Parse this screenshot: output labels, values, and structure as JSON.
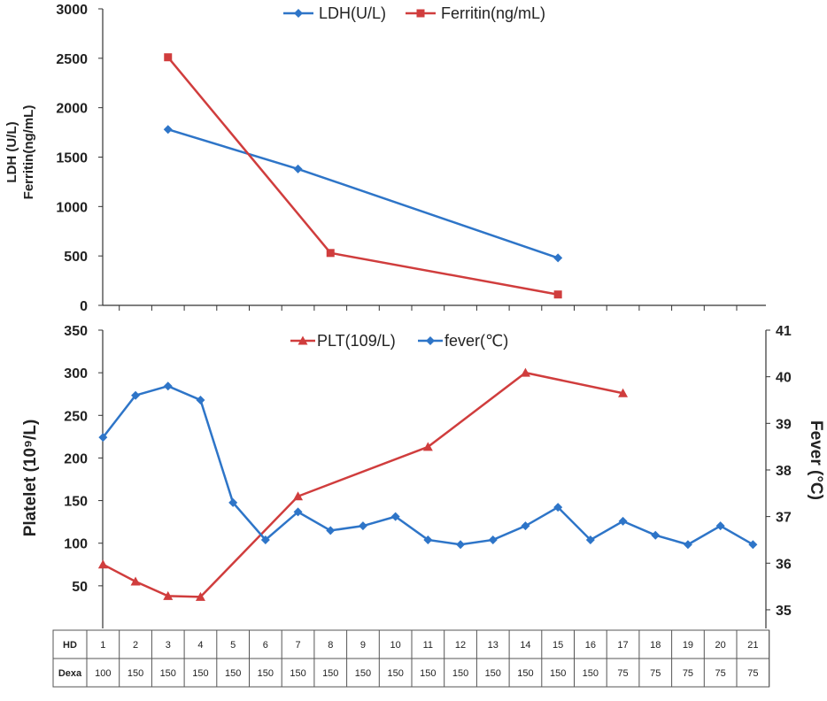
{
  "chart_data": [
    {
      "type": "line",
      "ylabel_line1": "LDH (U/L)",
      "ylabel_line2": "Ferritin(ng/mL)",
      "ylim": [
        0,
        3000
      ],
      "yticks": [
        0,
        500,
        1000,
        1500,
        2000,
        2500,
        3000
      ],
      "legend_position": "top-center",
      "series": [
        {
          "name": "LDH(U/L)",
          "color": "#2e75c8",
          "marker": "diamond",
          "points": [
            [
              3,
              1780
            ],
            [
              7,
              1380
            ],
            [
              15,
              480
            ]
          ]
        },
        {
          "name": "Ferritin(ng/mL)",
          "color": "#d03d3d",
          "marker": "square",
          "points": [
            [
              3,
              2510
            ],
            [
              8,
              530
            ],
            [
              15,
              110
            ]
          ]
        }
      ]
    },
    {
      "type": "line",
      "ylabel_left": "Platelet (10⁹/L)",
      "ylabel_right": "Fever (°C)",
      "ylim_left": [
        0,
        350
      ],
      "yticks_left": [
        50,
        100,
        150,
        200,
        250,
        300,
        350
      ],
      "ylim_right": [
        34.6,
        41
      ],
      "yticks_right": [
        35,
        36,
        37,
        38,
        39,
        40,
        41
      ],
      "legend_position": "top-center",
      "series": [
        {
          "name": "PLT(109/L)",
          "axis": "left",
          "color": "#d03d3d",
          "marker": "triangle",
          "points": [
            [
              1,
              75
            ],
            [
              2,
              55
            ],
            [
              3,
              38
            ],
            [
              4,
              37
            ],
            [
              7,
              155
            ],
            [
              11,
              213
            ],
            [
              14,
              300
            ],
            [
              17,
              276
            ]
          ]
        },
        {
          "name": "fever(℃)",
          "axis": "right",
          "color": "#2e75c8",
          "marker": "diamond",
          "points": [
            [
              1,
              38.7
            ],
            [
              2,
              39.6
            ],
            [
              3,
              39.8
            ],
            [
              4,
              39.5
            ],
            [
              5,
              37.3
            ],
            [
              6,
              36.5
            ],
            [
              7,
              37.1
            ],
            [
              8,
              36.7
            ],
            [
              9,
              36.8
            ],
            [
              10,
              37.0
            ],
            [
              11,
              36.5
            ],
            [
              12,
              36.4
            ],
            [
              13,
              36.5
            ],
            [
              14,
              36.8
            ],
            [
              15,
              37.2
            ],
            [
              16,
              36.5
            ],
            [
              17,
              36.9
            ],
            [
              18,
              36.6
            ],
            [
              19,
              36.4
            ],
            [
              20,
              36.8
            ],
            [
              21,
              36.4
            ]
          ]
        }
      ]
    }
  ],
  "table": {
    "rows": [
      {
        "label": "HD",
        "values": [
          "1",
          "2",
          "3",
          "4",
          "5",
          "6",
          "7",
          "8",
          "9",
          "10",
          "11",
          "12",
          "13",
          "14",
          "15",
          "16",
          "17",
          "18",
          "19",
          "20",
          "21"
        ]
      },
      {
        "label": "Dexa",
        "values": [
          "100",
          "150",
          "150",
          "150",
          "150",
          "150",
          "150",
          "150",
          "150",
          "150",
          "150",
          "150",
          "150",
          "150",
          "150",
          "150",
          "75",
          "75",
          "75",
          "75",
          "75"
        ]
      }
    ]
  }
}
